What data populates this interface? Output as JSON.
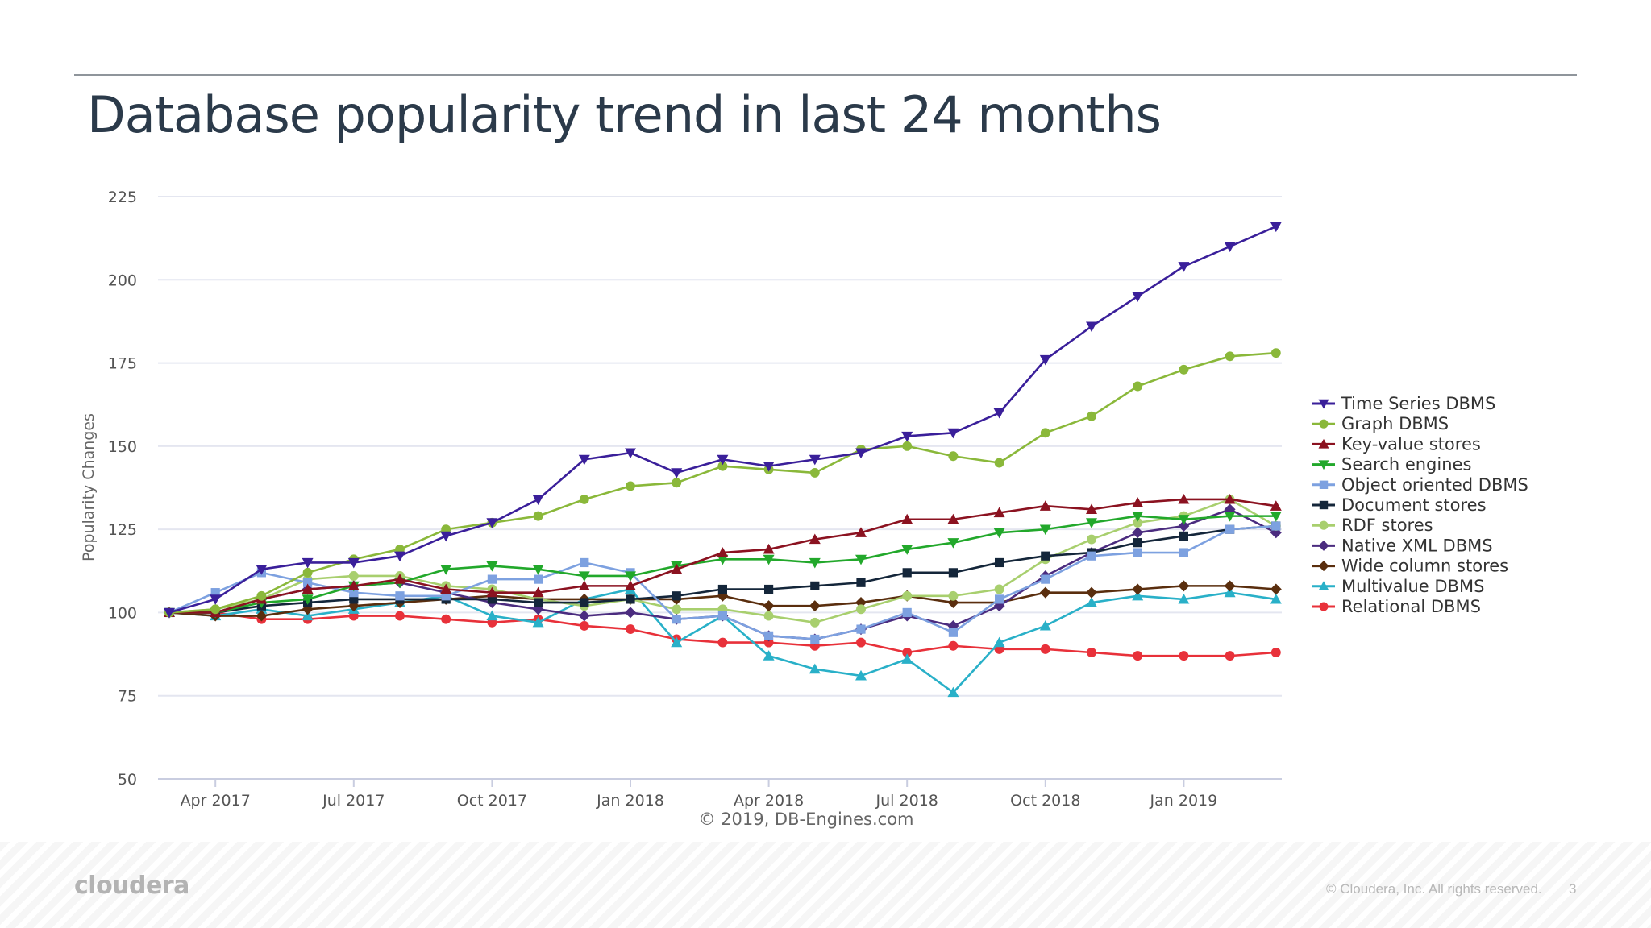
{
  "slide": {
    "title": "Database popularity trend in last 24 months",
    "logo": "cloudera",
    "copyright": "© Cloudera, Inc. All rights reserved.",
    "page_number": "3"
  },
  "chart_data": {
    "type": "line",
    "title": "",
    "xlabel": "",
    "ylabel": "Popularity Changes",
    "credit": "© 2019, DB-Engines.com",
    "ylim": [
      50,
      225
    ],
    "y_ticks": [
      50,
      75,
      100,
      125,
      150,
      175,
      200,
      225
    ],
    "x_ticks": [
      "Apr 2017",
      "Jul 2017",
      "Oct 2017",
      "Jan 2018",
      "Apr 2018",
      "Jul 2018",
      "Oct 2018",
      "Jan 2019"
    ],
    "x": [
      "Mar 2017",
      "Apr 2017",
      "May 2017",
      "Jun 2017",
      "Jul 2017",
      "Aug 2017",
      "Sep 2017",
      "Oct 2017",
      "Nov 2017",
      "Dec 2017",
      "Jan 2018",
      "Feb 2018",
      "Mar 2018",
      "Apr 2018",
      "May 2018",
      "Jun 2018",
      "Jul 2018",
      "Aug 2018",
      "Sep 2018",
      "Oct 2018",
      "Nov 2018",
      "Dec 2018",
      "Jan 2019",
      "Feb 2019",
      "Mar 2019"
    ],
    "grid": true,
    "legend_position": "right",
    "series": [
      {
        "name": "Time Series DBMS",
        "color": "#3a1f9a",
        "marker": "triangle-down",
        "values": [
          100,
          104,
          113,
          115,
          115,
          117,
          123,
          127,
          134,
          146,
          148,
          142,
          146,
          144,
          146,
          148,
          153,
          154,
          160,
          176,
          186,
          195,
          204,
          210,
          216
        ]
      },
      {
        "name": "Graph DBMS",
        "color": "#8ab83a",
        "marker": "circle",
        "values": [
          100,
          101,
          105,
          112,
          116,
          119,
          125,
          127,
          129,
          134,
          138,
          139,
          144,
          143,
          142,
          149,
          150,
          147,
          145,
          154,
          159,
          168,
          173,
          177,
          178
        ]
      },
      {
        "name": "Key-value stores",
        "color": "#8b1220",
        "marker": "triangle-up",
        "values": [
          100,
          100,
          104,
          107,
          108,
          110,
          107,
          106,
          106,
          108,
          108,
          113,
          118,
          119,
          122,
          124,
          128,
          128,
          130,
          132,
          131,
          133,
          134,
          134,
          132
        ]
      },
      {
        "name": "Search engines",
        "color": "#22a82b",
        "marker": "triangle-down",
        "values": [
          100,
          100,
          103,
          104,
          108,
          109,
          113,
          114,
          113,
          111,
          111,
          114,
          116,
          116,
          115,
          116,
          119,
          121,
          124,
          125,
          127,
          129,
          128,
          129,
          129
        ]
      },
      {
        "name": "Object oriented DBMS",
        "color": "#7da1e0",
        "marker": "square",
        "values": [
          100,
          106,
          112,
          109,
          106,
          105,
          105,
          110,
          110,
          115,
          112,
          98,
          99,
          93,
          92,
          95,
          100,
          94,
          104,
          110,
          117,
          118,
          118,
          125,
          126
        ]
      },
      {
        "name": "Document stores",
        "color": "#14263a",
        "marker": "square",
        "values": [
          100,
          100,
          102,
          103,
          104,
          104,
          104,
          104,
          103,
          103,
          104,
          105,
          107,
          107,
          108,
          109,
          112,
          112,
          115,
          117,
          118,
          121,
          123,
          125,
          126
        ]
      },
      {
        "name": "RDF stores",
        "color": "#a8cf6e",
        "marker": "circle",
        "values": [
          100,
          101,
          104,
          110,
          111,
          111,
          108,
          107,
          104,
          102,
          104,
          101,
          101,
          99,
          97,
          101,
          105,
          105,
          107,
          116,
          122,
          127,
          129,
          134,
          126
        ]
      },
      {
        "name": "Native XML DBMS",
        "color": "#4b2c7f",
        "marker": "diamond",
        "values": [
          100,
          100,
          104,
          107,
          108,
          109,
          106,
          103,
          101,
          99,
          100,
          98,
          99,
          93,
          92,
          95,
          99,
          96,
          102,
          111,
          118,
          124,
          126,
          131,
          124
        ]
      },
      {
        "name": "Wide column stores",
        "color": "#5a2e0e",
        "marker": "diamond",
        "values": [
          100,
          99,
          99,
          101,
          102,
          103,
          104,
          105,
          104,
          104,
          104,
          104,
          105,
          102,
          102,
          103,
          105,
          103,
          103,
          106,
          106,
          107,
          108,
          108,
          107
        ]
      },
      {
        "name": "Multivalue DBMS",
        "color": "#29b0c8",
        "marker": "triangle-up",
        "values": [
          100,
          99,
          101,
          99,
          101,
          103,
          105,
          99,
          97,
          104,
          107,
          91,
          99,
          87,
          83,
          81,
          86,
          76,
          91,
          96,
          103,
          105,
          104,
          106,
          104
        ]
      },
      {
        "name": "Relational DBMS",
        "color": "#e8313a",
        "marker": "circle",
        "values": [
          100,
          100,
          98,
          98,
          99,
          99,
          98,
          97,
          98,
          96,
          95,
          92,
          91,
          91,
          90,
          91,
          88,
          90,
          89,
          89,
          88,
          87,
          87,
          87,
          88
        ]
      }
    ]
  }
}
